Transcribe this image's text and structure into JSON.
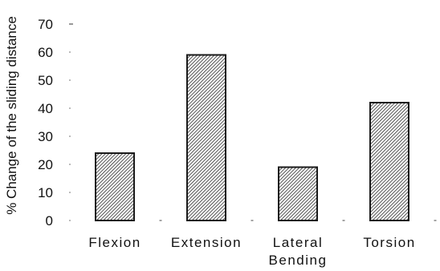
{
  "chart_data": {
    "type": "bar",
    "categories": [
      [
        "Flexion"
      ],
      [
        "Extension"
      ],
      [
        "Lateral",
        "Bending"
      ],
      [
        "Torsion"
      ]
    ],
    "values": [
      24,
      59,
      19,
      42
    ],
    "ylabel": "% Change of the sliding distance",
    "xlabel": "",
    "ylim": [
      0,
      70
    ],
    "yticks": [
      "0",
      "10",
      "20",
      "30",
      "40",
      "50",
      "60",
      "70"
    ],
    "grid": false,
    "bar_fill": "hatched diagonal",
    "bar_color": "#1a1a1a"
  }
}
